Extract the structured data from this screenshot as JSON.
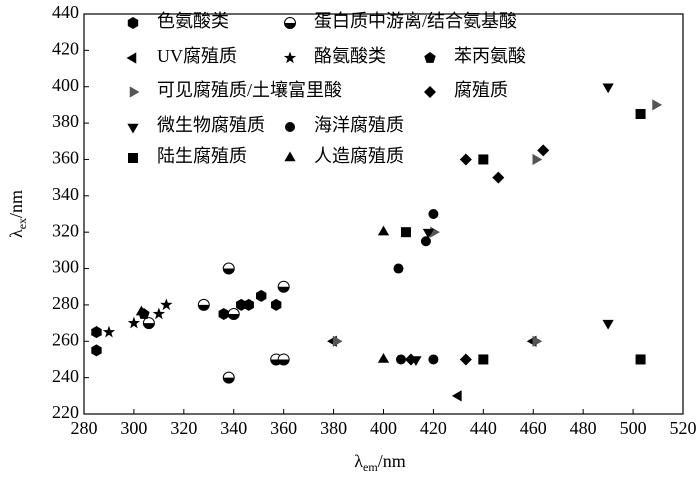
{
  "chart_data": {
    "type": "scatter",
    "xlabel": [
      "λ",
      "em",
      "/nm"
    ],
    "ylabel": [
      "λ",
      "ex",
      "/nm"
    ],
    "xlim": [
      280,
      520
    ],
    "xticks": [
      280,
      300,
      320,
      340,
      360,
      380,
      400,
      420,
      440,
      460,
      480,
      500,
      520
    ],
    "ylim": [
      220,
      440
    ],
    "yticks": [
      220,
      240,
      260,
      280,
      300,
      320,
      340,
      360,
      380,
      400,
      420,
      440
    ],
    "series": [
      {
        "name": "色氨酸类",
        "marker": "hexagon",
        "color": "#000000",
        "x": [
          285,
          285,
          336,
          343,
          346,
          351,
          357
        ],
        "values": [
          255,
          265,
          275,
          280,
          280,
          285,
          280
        ]
      },
      {
        "name": "蛋白质中游离/结合氨基酸",
        "marker": "half-circle",
        "color": "#000000",
        "x": [
          306,
          328,
          338,
          360,
          340,
          357,
          360,
          338
        ],
        "values": [
          270,
          280,
          300,
          290,
          275,
          250,
          250,
          240
        ]
      },
      {
        "name": "UV腐殖质",
        "marker": "triangle-left",
        "color": "#000000",
        "x": [
          380,
          430,
          460
        ],
        "values": [
          260,
          230,
          260
        ]
      },
      {
        "name": "酪氨酸类",
        "marker": "star",
        "color": "#000000",
        "x": [
          290,
          300,
          310,
          313
        ],
        "values": [
          265,
          270,
          275,
          280
        ]
      },
      {
        "name": "苯丙氨酸",
        "marker": "pentagon",
        "color": "#000000",
        "x": [
          304
        ],
        "values": [
          275
        ]
      },
      {
        "name": "可见腐殖质/土壤富里酸",
        "marker": "triangle-right",
        "color": "#555555",
        "x": [
          420,
          461,
          509,
          381,
          461
        ],
        "values": [
          320,
          360,
          390,
          260,
          260
        ]
      },
      {
        "name": "腐殖质",
        "marker": "diamond",
        "color": "#000000",
        "x": [
          433,
          446,
          464,
          433,
          411
        ],
        "values": [
          360,
          350,
          365,
          250,
          250
        ]
      },
      {
        "name": "微生物腐殖质",
        "marker": "triangle-down",
        "color": "#000000",
        "x": [
          490,
          490,
          418,
          413
        ],
        "values": [
          400,
          270,
          320,
          250
        ]
      },
      {
        "name": "海洋腐殖质",
        "marker": "circle",
        "color": "#000000",
        "x": [
          420,
          417,
          406,
          420,
          407
        ],
        "values": [
          330,
          315,
          300,
          250,
          250
        ]
      },
      {
        "name": "陆生腐殖质",
        "marker": "square",
        "color": "#000000",
        "x": [
          503,
          440,
          409,
          440,
          503
        ],
        "values": [
          385,
          360,
          320,
          250,
          250
        ]
      },
      {
        "name": "人造腐殖质",
        "marker": "triangle-up",
        "color": "#000000",
        "x": [
          400,
          400,
          303,
          285
        ],
        "values": [
          320,
          250,
          276,
          265
        ]
      }
    ]
  }
}
